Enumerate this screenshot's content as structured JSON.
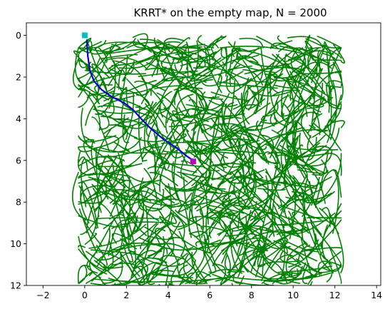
{
  "chart_data": {
    "type": "scatter",
    "title": "KRRT* on the empty map, N = 2000",
    "xlabel": "",
    "ylabel": "",
    "xlim": [
      -2.8,
      14.2
    ],
    "ylim": [
      12,
      -0.6
    ],
    "y_axis_inverted": true,
    "grid": false,
    "xticks": [
      -2,
      0,
      2,
      4,
      6,
      8,
      10,
      12,
      14
    ],
    "yticks": [
      0,
      2,
      4,
      6,
      8,
      10,
      12
    ],
    "xtick_labels": [
      "−2",
      "0",
      "2",
      "4",
      "6",
      "8",
      "10",
      "12",
      "14"
    ],
    "ytick_labels": [
      "0",
      "2",
      "4",
      "6",
      "8",
      "10",
      "12"
    ],
    "tree": {
      "color": "#008000",
      "region": {
        "x": [
          0.0,
          12.0
        ],
        "y": [
          0.0,
          12.0
        ]
      },
      "edge_count": 2000
    },
    "path": {
      "color": "#0000cc",
      "x": [
        0.1,
        0.15,
        0.25,
        0.45,
        0.8,
        1.3,
        1.9,
        2.3,
        2.7,
        3.2,
        3.8,
        4.4,
        4.9,
        5.2
      ],
      "y": [
        0.25,
        1.0,
        1.7,
        2.2,
        2.6,
        2.95,
        3.25,
        3.55,
        4.0,
        4.5,
        5.0,
        5.4,
        5.8,
        6.0
      ]
    },
    "start": {
      "x": 0.0,
      "y": 0.0,
      "color": "#00bfbf",
      "marker": "square"
    },
    "goal": {
      "x": 5.2,
      "y": 6.05,
      "color": "#bf00bf",
      "marker": "square"
    }
  }
}
